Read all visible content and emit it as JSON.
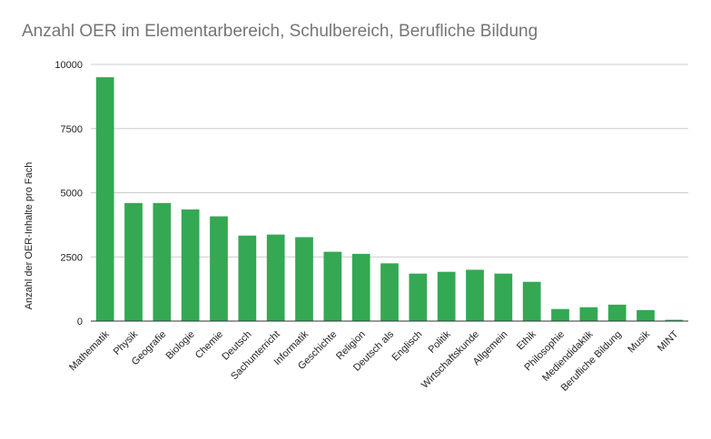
{
  "chart_data": {
    "type": "bar",
    "title": "Anzahl OER im Elementarbereich, Schulbereich, Berufliche Bildung",
    "xlabel": "",
    "ylabel": "Anzahl der OER-Inhalte pro Fach",
    "ylim": [
      0,
      10000
    ],
    "yticks": [
      0,
      2500,
      5000,
      7500,
      10000
    ],
    "grid": true,
    "legend": "none",
    "bar_color": "#34a853",
    "categories": [
      "Mathematik",
      "Physik",
      "Geografie",
      "Biologie",
      "Chemie",
      "Deutsch",
      "Sachunterricht",
      "Informatik",
      "Geschichte",
      "Religion",
      "Deutsch als",
      "Englisch",
      "Politik",
      "Wirtschaftskunde",
      "Allgemein",
      "Ethik",
      "Philosophie",
      "Mediendidaktik",
      "Berufliche Bildung",
      "Musik",
      "MINT"
    ],
    "values": [
      9500,
      4600,
      4600,
      4350,
      4080,
      3330,
      3370,
      3270,
      2700,
      2620,
      2250,
      1850,
      1920,
      2000,
      1850,
      1530,
      470,
      540,
      640,
      430,
      50
    ]
  }
}
